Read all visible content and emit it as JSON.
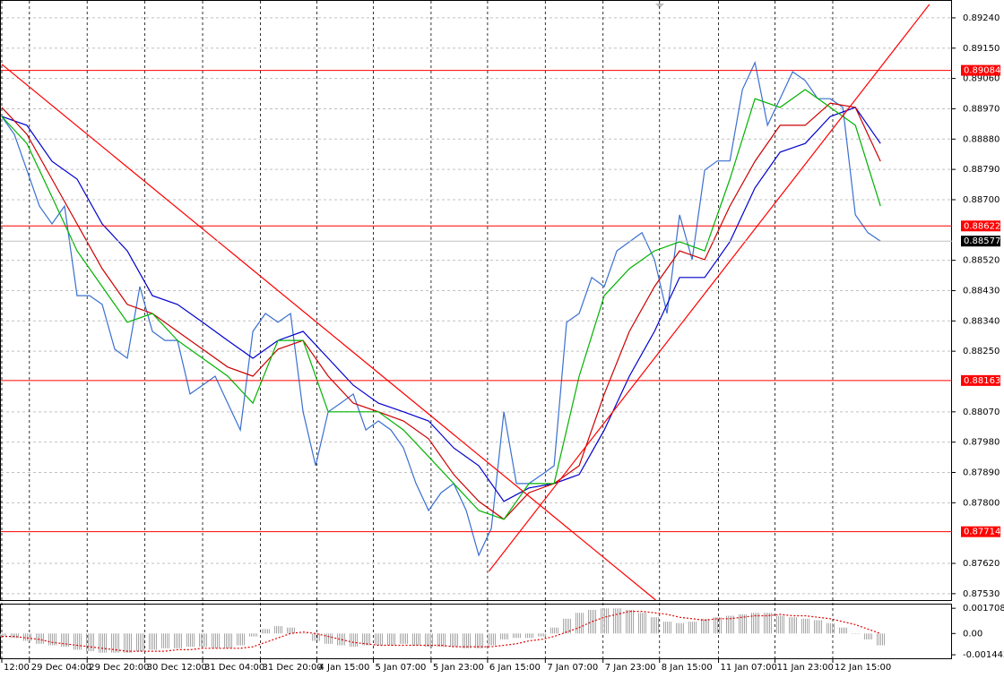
{
  "chart_data": [
    {
      "type": "line",
      "ylim": [
        0.87511,
        0.89293
      ],
      "yticks": [
        {
          "value": 0.8924,
          "label": "0.89240"
        },
        {
          "value": 0.8915,
          "label": "0.89150"
        },
        {
          "value": 0.8906,
          "label": "0.89060"
        },
        {
          "value": 0.8897,
          "label": "0.88970"
        },
        {
          "value": 0.8888,
          "label": "0.88880"
        },
        {
          "value": 0.8879,
          "label": "0.88790"
        },
        {
          "value": 0.887,
          "label": "0.88700"
        },
        {
          "value": 0.8852,
          "label": "0.88520"
        },
        {
          "value": 0.8843,
          "label": "0.88430"
        },
        {
          "value": 0.8834,
          "label": "0.88340"
        },
        {
          "value": 0.8825,
          "label": "0.88250"
        },
        {
          "value": 0.8807,
          "label": "0.88070"
        },
        {
          "value": 0.8798,
          "label": "0.87980"
        },
        {
          "value": 0.8789,
          "label": "0.87890"
        },
        {
          "value": 0.878,
          "label": "0.87800"
        },
        {
          "value": 0.8762,
          "label": "0.87620"
        },
        {
          "value": 0.8753,
          "label": "0.87530"
        }
      ],
      "xlim": [
        0,
        75.7
      ],
      "xticks": [
        {
          "value": 0,
          "label": "12:00"
        },
        {
          "value": 2.2,
          "label": "29 Dec 04:00"
        },
        {
          "value": 6.8,
          "label": "29 Dec 20:00"
        },
        {
          "value": 11.4,
          "label": "30 Dec 12:00"
        },
        {
          "value": 16,
          "label": "31 Dec 04:00"
        },
        {
          "value": 20.6,
          "label": "31 Dec 20:00"
        },
        {
          "value": 25.1,
          "label": "4 Jan 15:00"
        },
        {
          "value": 29.6,
          "label": "5 Jan 07:00"
        },
        {
          "value": 34.2,
          "label": "5 Jan 23:00"
        },
        {
          "value": 38.7,
          "label": "6 Jan 15:00"
        },
        {
          "value": 43.3,
          "label": "7 Jan 07:00"
        },
        {
          "value": 47.9,
          "label": "7 Jan 23:00"
        },
        {
          "value": 52.4,
          "label": "8 Jan 15:00"
        },
        {
          "value": 57.1,
          "label": "11 Jan 07:00"
        },
        {
          "value": 61.6,
          "label": "11 Jan 23:00"
        },
        {
          "value": 66.2,
          "label": "12 Jan 15:00"
        }
      ],
      "grid": true,
      "series": [
        {
          "color": "#3a6fd0",
          "values": [
            0.88947,
            0.88894,
            0.88788,
            0.88681,
            0.88628,
            0.88681,
            0.88415,
            0.88415,
            0.88389,
            0.88256,
            0.88229,
            0.88442,
            0.88309,
            0.88282,
            0.88282,
            0.88123,
            0.88149,
            0.88176,
            0.88096,
            0.88016,
            0.88309,
            0.88362,
            0.88336,
            0.88362,
            0.8807,
            0.8791,
            0.8807,
            0.88096,
            0.88123,
            0.88016,
            0.88043,
            0.88016,
            0.87963,
            0.87857,
            0.87777,
            0.8783,
            0.87857,
            0.87777,
            0.87644,
            0.87724,
            0.8807,
            0.87857,
            0.87857,
            0.87883,
            0.8791,
            0.88336,
            0.88362,
            0.88469,
            0.88442,
            0.88548,
            0.88575,
            0.88602,
            0.88522,
            0.88362,
            0.88655,
            0.88522,
            0.88788,
            0.88815,
            0.88815,
            0.89027,
            0.89107,
            0.88921,
            0.89,
            0.8908,
            0.89054,
            0.89,
            0.89,
            0.88974,
            0.88655,
            0.88602,
            0.88577
          ]
        },
        {
          "color": "#0000cc",
          "x": [
            0,
            2,
            4,
            6,
            8,
            10,
            12,
            14,
            16,
            18,
            20,
            22,
            24,
            26,
            28,
            30,
            32,
            34,
            36,
            38,
            40,
            42,
            44,
            46,
            48,
            50,
            52,
            54,
            56,
            58,
            60,
            62,
            64,
            66,
            68,
            70
          ],
          "values": [
            0.88947,
            0.88921,
            0.88814,
            0.88761,
            0.88628,
            0.88548,
            0.88415,
            0.88389,
            0.88336,
            0.88282,
            0.88229,
            0.88282,
            0.88309,
            0.88229,
            0.88149,
            0.88096,
            0.8807,
            0.88043,
            0.87963,
            0.8791,
            0.87804,
            0.87844,
            0.87857,
            0.87884,
            0.88016,
            0.88176,
            0.88309,
            0.88469,
            0.88469,
            0.88575,
            0.88735,
            0.88841,
            0.88867,
            0.88947,
            0.88974,
            0.88867
          ]
        },
        {
          "color": "#cc0000",
          "x": [
            0,
            2,
            4,
            6,
            8,
            10,
            12,
            14,
            16,
            18,
            20,
            22,
            24,
            26,
            28,
            30,
            32,
            34,
            36,
            38,
            40,
            42,
            44,
            46,
            48,
            50,
            52,
            54,
            56,
            58,
            60,
            62,
            64,
            66,
            68,
            70
          ],
          "values": [
            0.88974,
            0.88894,
            0.88761,
            0.88628,
            0.88495,
            0.88389,
            0.88362,
            0.88309,
            0.88256,
            0.88203,
            0.88176,
            0.88256,
            0.88282,
            0.88176,
            0.88096,
            0.8807,
            0.88043,
            0.8799,
            0.87884,
            0.87804,
            0.87751,
            0.8783,
            0.87857,
            0.8791,
            0.88123,
            0.88309,
            0.88442,
            0.88548,
            0.88522,
            0.88681,
            0.88814,
            0.88921,
            0.88921,
            0.88987,
            0.88974,
            0.88814
          ]
        },
        {
          "color": "#00b300",
          "x": [
            0,
            2,
            4,
            6,
            8,
            10,
            12,
            14,
            16,
            18,
            20,
            22,
            24,
            26,
            28,
            30,
            32,
            34,
            36,
            38,
            40,
            42,
            44,
            46,
            48,
            50,
            52,
            54,
            56,
            58,
            60,
            62,
            64,
            66,
            68,
            70
          ],
          "values": [
            0.88947,
            0.88867,
            0.88708,
            0.88548,
            0.88442,
            0.88336,
            0.88362,
            0.88282,
            0.88229,
            0.88176,
            0.88096,
            0.88282,
            0.88282,
            0.8807,
            0.8807,
            0.8807,
            0.88016,
            0.87937,
            0.87857,
            0.87777,
            0.87751,
            0.87857,
            0.87857,
            0.88176,
            0.88415,
            0.88495,
            0.88548,
            0.88575,
            0.88548,
            0.88761,
            0.89,
            0.88974,
            0.89027,
            0.88974,
            0.88921,
            0.88681
          ]
        }
      ],
      "trendlines": [
        {
          "color": "#ff0000",
          "x": [
            0,
            52.1
          ],
          "values": [
            0.89102,
            0.87511
          ]
        },
        {
          "color": "#ff0000",
          "x": [
            38.8,
            73.9
          ],
          "values": [
            0.87596,
            0.8928
          ]
        }
      ],
      "levels": [
        0.89084,
        0.88622,
        0.88163,
        0.87714
      ],
      "level_color": "#ff0000",
      "current_price": 0.88577
    },
    {
      "type": "bar",
      "ylim": [
        -0.00168,
        0.00196
      ],
      "yticks": [
        0.001708,
        {
          "value": 0,
          "label": "0.00"
        },
        -0.001442
      ],
      "color": "#a8a8a8",
      "values": [
        -0.0002,
        -0.0003,
        -0.0005,
        -0.0007,
        -0.0008,
        -0.0009,
        -0.0011,
        -0.0012,
        -0.0013,
        -0.0013,
        -0.0013,
        -0.0012,
        -0.0011,
        -0.001,
        -0.001,
        -0.0009,
        -0.0009,
        -0.001,
        -0.001,
        -0.0008,
        -0.0002,
        0.0003,
        0.0005,
        0.0004,
        0,
        -0.0005,
        -0.0007,
        -0.0008,
        -0.0009,
        -0.0008,
        -0.0008,
        -0.0008,
        -0.0007,
        -0.0008,
        -0.0009,
        -0.0009,
        -0.0009,
        -0.001,
        -0.001,
        -0.0008,
        -0.0004,
        -0.0003,
        -0.0003,
        -0.0002,
        0.0004,
        0.001,
        0.0014,
        0.0016,
        0.0017,
        0.0017,
        0.0016,
        0.0014,
        0.0011,
        0.0008,
        0.0007,
        0.0008,
        0.001,
        0.0011,
        0.0012,
        0.0013,
        0.0014,
        0.0014,
        0.0012,
        0.0011,
        0.001,
        0.0009,
        0.0007,
        0.0004,
        0,
        -0.0004,
        -0.0008
      ],
      "signal": {
        "color": "#e00000",
        "values": [
          -0.0002,
          -0.0002,
          -0.0003,
          -0.0004,
          -0.0006,
          -0.0007,
          -0.0008,
          -0.0009,
          -0.001,
          -0.0011,
          -0.0012,
          -0.0012,
          -0.0012,
          -0.0012,
          -0.0011,
          -0.0011,
          -0.001,
          -0.001,
          -0.001,
          -0.001,
          -0.0009,
          -0.0006,
          -0.0003,
          0,
          0.0001,
          0,
          -0.0002,
          -0.0004,
          -0.0006,
          -0.0007,
          -0.0008,
          -0.0008,
          -0.0008,
          -0.0008,
          -0.0008,
          -0.0008,
          -0.0009,
          -0.0009,
          -0.0009,
          -0.0009,
          -0.0008,
          -0.0007,
          -0.0005,
          -0.0004,
          -0.0002,
          0.0001,
          0.0004,
          0.0008,
          0.0011,
          0.0013,
          0.0015,
          0.0015,
          0.0014,
          0.0013,
          0.0011,
          0.001,
          0.0009,
          0.001,
          0.001,
          0.0011,
          0.0012,
          0.0012,
          0.0013,
          0.0012,
          0.0012,
          0.0011,
          0.001,
          0.0008,
          0.0006,
          0.0003,
          0
        ]
      }
    }
  ]
}
